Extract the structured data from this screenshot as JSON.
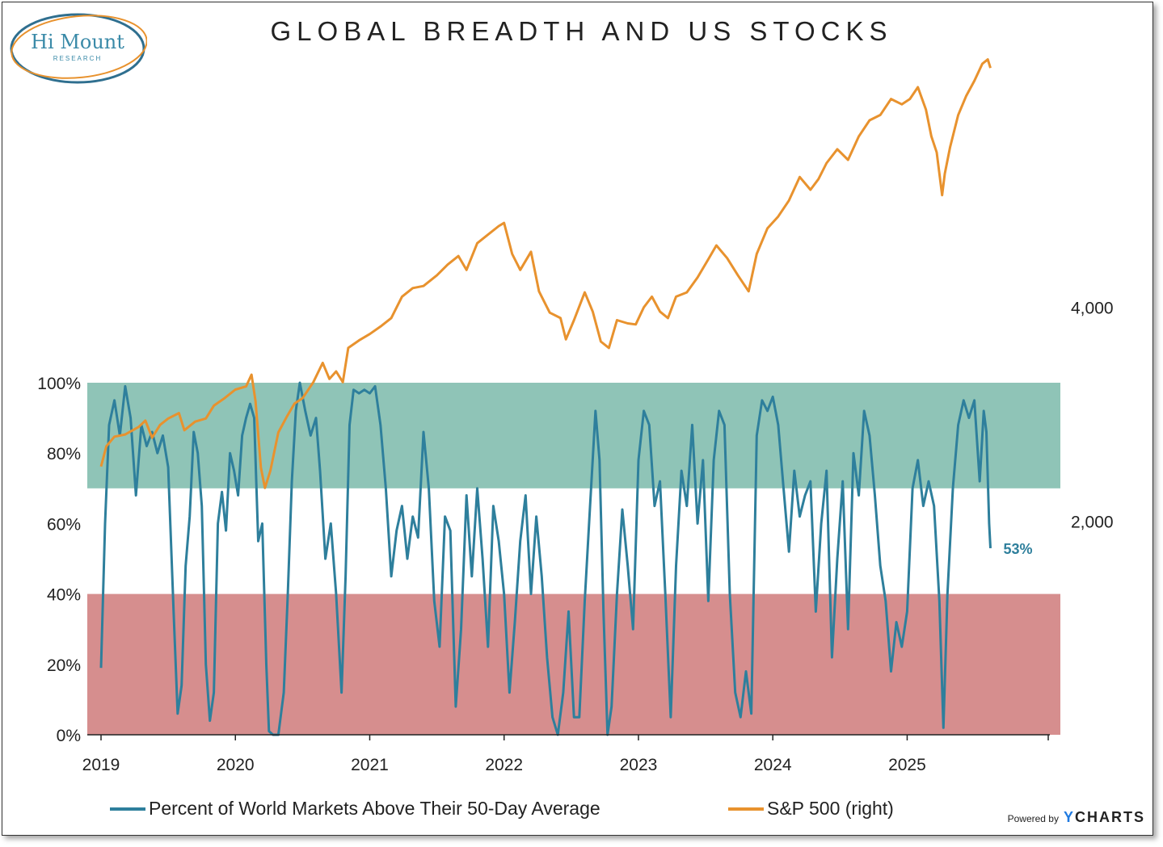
{
  "logo": {
    "name": "Hi Mount",
    "sub": "RESEARCH"
  },
  "chart_data": {
    "type": "line",
    "title": "GLOBAL BREADTH AND US STOCKS",
    "x_range": [
      2019.0,
      2026.05
    ],
    "x_ticks": [
      "2019",
      "2020",
      "2021",
      "2022",
      "2023",
      "2024",
      "2025"
    ],
    "left_axis": {
      "ticks": [
        "100%",
        "80%",
        "60%",
        "40%",
        "20%",
        "0%"
      ],
      "range": [
        0,
        100
      ]
    },
    "right_axis": {
      "ticks": [
        "4,000",
        "2,000"
      ],
      "range": [
        0,
        6740
      ]
    },
    "bands": [
      {
        "from": 70,
        "to": 100,
        "color": "#8fc4b7"
      },
      {
        "from": 0,
        "to": 40,
        "color": "#d68e8e"
      }
    ],
    "series": [
      {
        "name": "Percent of World Markets Above Their 50-Day Average",
        "axis": "left",
        "color": "#2e7f9c",
        "last_label": "53%",
        "points": [
          [
            2019.0,
            19
          ],
          [
            2019.03,
            60
          ],
          [
            2019.06,
            88
          ],
          [
            2019.1,
            95
          ],
          [
            2019.14,
            85
          ],
          [
            2019.18,
            99
          ],
          [
            2019.22,
            90
          ],
          [
            2019.26,
            68
          ],
          [
            2019.3,
            88
          ],
          [
            2019.34,
            82
          ],
          [
            2019.38,
            86
          ],
          [
            2019.42,
            80
          ],
          [
            2019.46,
            85
          ],
          [
            2019.5,
            76
          ],
          [
            2019.54,
            35
          ],
          [
            2019.57,
            6
          ],
          [
            2019.6,
            14
          ],
          [
            2019.63,
            48
          ],
          [
            2019.66,
            62
          ],
          [
            2019.69,
            86
          ],
          [
            2019.72,
            80
          ],
          [
            2019.75,
            65
          ],
          [
            2019.78,
            20
          ],
          [
            2019.81,
            4
          ],
          [
            2019.84,
            12
          ],
          [
            2019.87,
            60
          ],
          [
            2019.9,
            69
          ],
          [
            2019.93,
            58
          ],
          [
            2019.96,
            80
          ],
          [
            2019.99,
            75
          ],
          [
            2020.02,
            68
          ],
          [
            2020.05,
            85
          ],
          [
            2020.08,
            90
          ],
          [
            2020.11,
            94
          ],
          [
            2020.14,
            90
          ],
          [
            2020.17,
            55
          ],
          [
            2020.2,
            60
          ],
          [
            2020.23,
            20
          ],
          [
            2020.25,
            1
          ],
          [
            2020.28,
            0
          ],
          [
            2020.32,
            0
          ],
          [
            2020.36,
            12
          ],
          [
            2020.39,
            40
          ],
          [
            2020.42,
            72
          ],
          [
            2020.45,
            92
          ],
          [
            2020.48,
            100
          ],
          [
            2020.52,
            92
          ],
          [
            2020.56,
            85
          ],
          [
            2020.6,
            90
          ],
          [
            2020.63,
            75
          ],
          [
            2020.67,
            50
          ],
          [
            2020.71,
            60
          ],
          [
            2020.75,
            40
          ],
          [
            2020.79,
            12
          ],
          [
            2020.82,
            45
          ],
          [
            2020.85,
            88
          ],
          [
            2020.88,
            98
          ],
          [
            2020.92,
            97
          ],
          [
            2020.96,
            98
          ],
          [
            2021.0,
            97
          ],
          [
            2021.04,
            99
          ],
          [
            2021.08,
            88
          ],
          [
            2021.12,
            70
          ],
          [
            2021.16,
            45
          ],
          [
            2021.2,
            58
          ],
          [
            2021.24,
            65
          ],
          [
            2021.28,
            50
          ],
          [
            2021.32,
            62
          ],
          [
            2021.36,
            56
          ],
          [
            2021.4,
            86
          ],
          [
            2021.44,
            70
          ],
          [
            2021.48,
            38
          ],
          [
            2021.52,
            25
          ],
          [
            2021.56,
            62
          ],
          [
            2021.6,
            58
          ],
          [
            2021.64,
            8
          ],
          [
            2021.68,
            30
          ],
          [
            2021.72,
            68
          ],
          [
            2021.76,
            45
          ],
          [
            2021.8,
            70
          ],
          [
            2021.84,
            50
          ],
          [
            2021.88,
            25
          ],
          [
            2021.92,
            65
          ],
          [
            2021.96,
            55
          ],
          [
            2022.0,
            40
          ],
          [
            2022.04,
            12
          ],
          [
            2022.08,
            32
          ],
          [
            2022.12,
            55
          ],
          [
            2022.16,
            68
          ],
          [
            2022.2,
            40
          ],
          [
            2022.24,
            62
          ],
          [
            2022.28,
            45
          ],
          [
            2022.32,
            22
          ],
          [
            2022.36,
            5
          ],
          [
            2022.4,
            0
          ],
          [
            2022.44,
            12
          ],
          [
            2022.48,
            35
          ],
          [
            2022.52,
            5
          ],
          [
            2022.56,
            5
          ],
          [
            2022.6,
            38
          ],
          [
            2022.64,
            65
          ],
          [
            2022.68,
            92
          ],
          [
            2022.71,
            78
          ],
          [
            2022.74,
            35
          ],
          [
            2022.77,
            0
          ],
          [
            2022.8,
            8
          ],
          [
            2022.84,
            40
          ],
          [
            2022.88,
            64
          ],
          [
            2022.92,
            48
          ],
          [
            2022.96,
            30
          ],
          [
            2023.0,
            78
          ],
          [
            2023.04,
            92
          ],
          [
            2023.08,
            88
          ],
          [
            2023.12,
            65
          ],
          [
            2023.16,
            72
          ],
          [
            2023.2,
            40
          ],
          [
            2023.24,
            5
          ],
          [
            2023.28,
            48
          ],
          [
            2023.32,
            75
          ],
          [
            2023.36,
            65
          ],
          [
            2023.4,
            88
          ],
          [
            2023.44,
            60
          ],
          [
            2023.48,
            78
          ],
          [
            2023.52,
            38
          ],
          [
            2023.56,
            78
          ],
          [
            2023.6,
            92
          ],
          [
            2023.64,
            88
          ],
          [
            2023.68,
            40
          ],
          [
            2023.72,
            12
          ],
          [
            2023.76,
            5
          ],
          [
            2023.8,
            18
          ],
          [
            2023.84,
            6
          ],
          [
            2023.88,
            85
          ],
          [
            2023.92,
            95
          ],
          [
            2023.96,
            92
          ],
          [
            2024.0,
            96
          ],
          [
            2024.04,
            88
          ],
          [
            2024.08,
            70
          ],
          [
            2024.12,
            52
          ],
          [
            2024.16,
            75
          ],
          [
            2024.2,
            62
          ],
          [
            2024.24,
            68
          ],
          [
            2024.28,
            72
          ],
          [
            2024.32,
            35
          ],
          [
            2024.36,
            60
          ],
          [
            2024.4,
            75
          ],
          [
            2024.44,
            22
          ],
          [
            2024.48,
            50
          ],
          [
            2024.52,
            72
          ],
          [
            2024.56,
            30
          ],
          [
            2024.6,
            80
          ],
          [
            2024.64,
            68
          ],
          [
            2024.68,
            92
          ],
          [
            2024.72,
            85
          ],
          [
            2024.76,
            68
          ],
          [
            2024.8,
            48
          ],
          [
            2024.84,
            38
          ],
          [
            2024.88,
            18
          ],
          [
            2024.92,
            32
          ],
          [
            2024.96,
            25
          ],
          [
            2025.0,
            35
          ],
          [
            2025.04,
            70
          ],
          [
            2025.08,
            78
          ],
          [
            2025.12,
            65
          ],
          [
            2025.16,
            72
          ],
          [
            2025.2,
            65
          ],
          [
            2025.24,
            38
          ],
          [
            2025.27,
            2
          ],
          [
            2025.3,
            40
          ],
          [
            2025.34,
            70
          ],
          [
            2025.38,
            88
          ],
          [
            2025.42,
            95
          ],
          [
            2025.46,
            90
          ],
          [
            2025.5,
            95
          ],
          [
            2025.54,
            72
          ],
          [
            2025.57,
            92
          ],
          [
            2025.59,
            86
          ],
          [
            2025.61,
            60
          ],
          [
            2025.62,
            53
          ]
        ]
      },
      {
        "name": "S&P 500 (right)",
        "axis": "right",
        "color": "#e8922e",
        "points": [
          [
            2019.0,
            2510
          ],
          [
            2019.04,
            2700
          ],
          [
            2019.1,
            2790
          ],
          [
            2019.18,
            2810
          ],
          [
            2019.28,
            2880
          ],
          [
            2019.33,
            2940
          ],
          [
            2019.38,
            2780
          ],
          [
            2019.44,
            2900
          ],
          [
            2019.5,
            2960
          ],
          [
            2019.58,
            3010
          ],
          [
            2019.62,
            2850
          ],
          [
            2019.7,
            2930
          ],
          [
            2019.78,
            2960
          ],
          [
            2019.84,
            3080
          ],
          [
            2019.92,
            3150
          ],
          [
            2020.0,
            3230
          ],
          [
            2020.08,
            3260
          ],
          [
            2020.12,
            3370
          ],
          [
            2020.15,
            3120
          ],
          [
            2020.19,
            2500
          ],
          [
            2020.22,
            2310
          ],
          [
            2020.26,
            2470
          ],
          [
            2020.32,
            2830
          ],
          [
            2020.38,
            2970
          ],
          [
            2020.44,
            3100
          ],
          [
            2020.5,
            3150
          ],
          [
            2020.58,
            3300
          ],
          [
            2020.65,
            3480
          ],
          [
            2020.7,
            3330
          ],
          [
            2020.75,
            3400
          ],
          [
            2020.8,
            3300
          ],
          [
            2020.84,
            3620
          ],
          [
            2020.92,
            3690
          ],
          [
            2021.0,
            3750
          ],
          [
            2021.08,
            3820
          ],
          [
            2021.16,
            3900
          ],
          [
            2021.24,
            4100
          ],
          [
            2021.32,
            4180
          ],
          [
            2021.4,
            4200
          ],
          [
            2021.5,
            4300
          ],
          [
            2021.58,
            4400
          ],
          [
            2021.66,
            4480
          ],
          [
            2021.72,
            4350
          ],
          [
            2021.8,
            4600
          ],
          [
            2021.88,
            4680
          ],
          [
            2021.96,
            4760
          ],
          [
            2022.0,
            4790
          ],
          [
            2022.06,
            4500
          ],
          [
            2022.12,
            4350
          ],
          [
            2022.2,
            4520
          ],
          [
            2022.26,
            4150
          ],
          [
            2022.34,
            3950
          ],
          [
            2022.42,
            3900
          ],
          [
            2022.46,
            3700
          ],
          [
            2022.52,
            3880
          ],
          [
            2022.6,
            4140
          ],
          [
            2022.66,
            3960
          ],
          [
            2022.72,
            3680
          ],
          [
            2022.78,
            3620
          ],
          [
            2022.84,
            3880
          ],
          [
            2022.92,
            3850
          ],
          [
            2022.98,
            3840
          ],
          [
            2023.04,
            4000
          ],
          [
            2023.1,
            4100
          ],
          [
            2023.16,
            3960
          ],
          [
            2023.22,
            3900
          ],
          [
            2023.28,
            4100
          ],
          [
            2023.36,
            4140
          ],
          [
            2023.44,
            4280
          ],
          [
            2023.52,
            4450
          ],
          [
            2023.58,
            4580
          ],
          [
            2023.66,
            4460
          ],
          [
            2023.74,
            4300
          ],
          [
            2023.82,
            4150
          ],
          [
            2023.88,
            4500
          ],
          [
            2023.96,
            4740
          ],
          [
            2024.04,
            4850
          ],
          [
            2024.12,
            5000
          ],
          [
            2024.2,
            5220
          ],
          [
            2024.28,
            5100
          ],
          [
            2024.34,
            5200
          ],
          [
            2024.4,
            5350
          ],
          [
            2024.48,
            5480
          ],
          [
            2024.56,
            5380
          ],
          [
            2024.64,
            5600
          ],
          [
            2024.72,
            5750
          ],
          [
            2024.8,
            5800
          ],
          [
            2024.88,
            5950
          ],
          [
            2024.96,
            5900
          ],
          [
            2025.02,
            5950
          ],
          [
            2025.08,
            6060
          ],
          [
            2025.14,
            5850
          ],
          [
            2025.18,
            5600
          ],
          [
            2025.22,
            5450
          ],
          [
            2025.26,
            5050
          ],
          [
            2025.28,
            5250
          ],
          [
            2025.32,
            5500
          ],
          [
            2025.38,
            5800
          ],
          [
            2025.44,
            5980
          ],
          [
            2025.5,
            6120
          ],
          [
            2025.56,
            6280
          ],
          [
            2025.6,
            6320
          ],
          [
            2025.62,
            6240
          ]
        ]
      }
    ],
    "legend_position": "bottom"
  }
}
